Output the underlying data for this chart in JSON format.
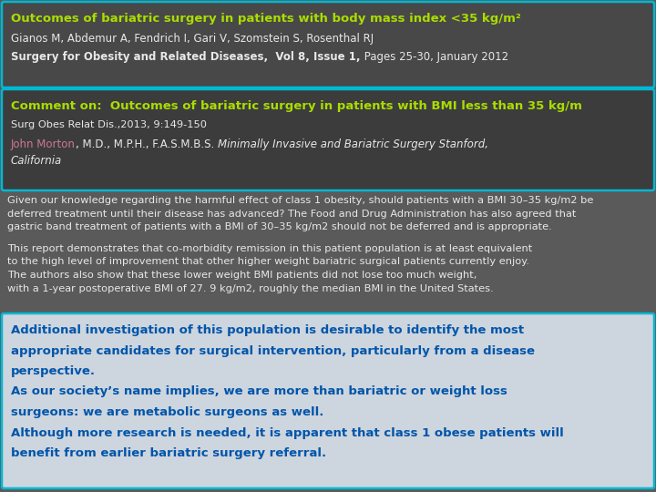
{
  "fig_bg": "#5a5a5a",
  "section1_bg": "#484848",
  "section1_border": "#00b8d4",
  "title_text": "Outcomes of bariatric surgery in patients with body mass index <35 kg/m²",
  "title_color": "#aadd00",
  "authors_text": "Gianos M, Abdemur A, Fendrich I, Gari V, Szomstein S, Rosenthal RJ",
  "authors_color": "#e8e8e8",
  "journal_bold": "Surgery for Obesity and Related Diseases,  Vol 8, Issue 1,",
  "journal_normal": " Pages 25-30, January 2012",
  "journal_color": "#e8e8e8",
  "section2_bg": "#3c3c3c",
  "section2_border": "#00b8d4",
  "comment_title": "Comment on:  Outcomes of bariatric surgery in patients with BMI less than 35 kg/m",
  "comment_title_color": "#aadd00",
  "comment_journal": "Surg Obes Relat Dis.,2013, 9:149-150",
  "comment_journal_color": "#e8e8e8",
  "author_name": "John Morton",
  "author_name_color": "#cc7799",
  "author_rest_normal": ", M.D., M.P.H., F.A.S.M.B.S. ",
  "author_italic": "Minimally Invasive and Bariatric Surgery Stanford,",
  "author_italic2": "California",
  "author_color": "#e8e8e8",
  "para1_color": "#e8e8e8",
  "para1_lines": [
    "Given our knowledge regarding the harmful effect of class 1 obesity, should patients with a BMI 30–35 kg/m2 be",
    "deferred treatment until their disease has advanced? The Food and Drug Administration has also agreed that",
    "gastric band treatment of patients with a BMI of 30–35 kg/m2 should not be deferred and is appropriate."
  ],
  "para2_color": "#e8e8e8",
  "para2_lines": [
    "This report demonstrates that co-morbidity remission in this patient population is at least equivalent",
    "to the high level of improvement that other higher weight bariatric surgical patients currently enjoy.",
    "The authors also show that these lower weight BMI patients did not lose too much weight,",
    "with a 1-year postoperative BMI of 27. 9 kg/m2, roughly the median BMI in the United States."
  ],
  "section3_bg": "#cdd5de",
  "section3_border": "#00b8d4",
  "bold_lines": [
    "Additional investigation of this population is desirable to identify the most",
    "appropriate candidates for surgical intervention, particularly from a disease",
    "perspective.",
    "As our society’s name implies, we are more than bariatric or weight loss",
    "surgeons: we are metabolic surgeons as well.",
    "Although more research is needed, it is apparent that class 1 obese patients will",
    "benefit from earlier bariatric surgery referral."
  ],
  "bold_text_color": "#0055aa"
}
